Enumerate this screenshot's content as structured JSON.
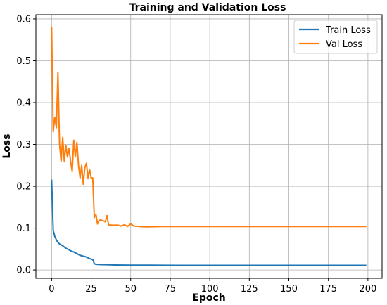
{
  "chart_data": {
    "type": "line",
    "title": "Training and Validation Loss",
    "xlabel": "Epoch",
    "ylabel": "Loss",
    "xlim": [
      -9.95,
      208.95
    ],
    "ylim": [
      -0.02,
      0.61
    ],
    "xticks": [
      0,
      25,
      50,
      75,
      100,
      125,
      150,
      175,
      200
    ],
    "yticks": [
      0.0,
      0.1,
      0.2,
      0.3,
      0.4,
      0.5,
      0.6
    ],
    "ytick_labels": [
      "0.0",
      "0.1",
      "0.2",
      "0.3",
      "0.4",
      "0.5",
      "0.6"
    ],
    "grid": true,
    "legend_position": "upper right",
    "series": [
      {
        "name": "Train Loss",
        "color": "#1f77b4",
        "points": [
          [
            0,
            0.216
          ],
          [
            1,
            0.095
          ],
          [
            2,
            0.08
          ],
          [
            3,
            0.072
          ],
          [
            4,
            0.066
          ],
          [
            5,
            0.062
          ],
          [
            6,
            0.06
          ],
          [
            7,
            0.058
          ],
          [
            8,
            0.055
          ],
          [
            9,
            0.052
          ],
          [
            10,
            0.05
          ],
          [
            11,
            0.048
          ],
          [
            12,
            0.046
          ],
          [
            13,
            0.044
          ],
          [
            14,
            0.043
          ],
          [
            15,
            0.041
          ],
          [
            16,
            0.039
          ],
          [
            17,
            0.037
          ],
          [
            18,
            0.035
          ],
          [
            19,
            0.034
          ],
          [
            20,
            0.033
          ],
          [
            21,
            0.032
          ],
          [
            22,
            0.031
          ],
          [
            23,
            0.029
          ],
          [
            24,
            0.027
          ],
          [
            25,
            0.026
          ],
          [
            26,
            0.025
          ],
          [
            27,
            0.015
          ],
          [
            28,
            0.0135
          ],
          [
            30,
            0.013
          ],
          [
            35,
            0.0125
          ],
          [
            40,
            0.012
          ],
          [
            50,
            0.0115
          ],
          [
            60,
            0.0115
          ],
          [
            80,
            0.011
          ],
          [
            100,
            0.011
          ],
          [
            150,
            0.011
          ],
          [
            199,
            0.011
          ]
        ]
      },
      {
        "name": "Val Loss",
        "color": "#ff7f0e",
        "points": [
          [
            0,
            0.58
          ],
          [
            1,
            0.33
          ],
          [
            2,
            0.365
          ],
          [
            3,
            0.34
          ],
          [
            4,
            0.472
          ],
          [
            5,
            0.3
          ],
          [
            6,
            0.26
          ],
          [
            7,
            0.317
          ],
          [
            8,
            0.26
          ],
          [
            9,
            0.298
          ],
          [
            10,
            0.27
          ],
          [
            11,
            0.29
          ],
          [
            12,
            0.26
          ],
          [
            13,
            0.235
          ],
          [
            14,
            0.31
          ],
          [
            15,
            0.27
          ],
          [
            16,
            0.305
          ],
          [
            17,
            0.25
          ],
          [
            18,
            0.22
          ],
          [
            19,
            0.25
          ],
          [
            20,
            0.205
          ],
          [
            21,
            0.245
          ],
          [
            22,
            0.255
          ],
          [
            23,
            0.22
          ],
          [
            24,
            0.24
          ],
          [
            25,
            0.22
          ],
          [
            26,
            0.22
          ],
          [
            27,
            0.125
          ],
          [
            28,
            0.133
          ],
          [
            29,
            0.11
          ],
          [
            30,
            0.118
          ],
          [
            31,
            0.12
          ],
          [
            32,
            0.118
          ],
          [
            33,
            0.117
          ],
          [
            34,
            0.115
          ],
          [
            35,
            0.13
          ],
          [
            36,
            0.108
          ],
          [
            38,
            0.107
          ],
          [
            40,
            0.107
          ],
          [
            42,
            0.107
          ],
          [
            44,
            0.105
          ],
          [
            46,
            0.108
          ],
          [
            48,
            0.104
          ],
          [
            50,
            0.11
          ],
          [
            52,
            0.105
          ],
          [
            55,
            0.104
          ],
          [
            60,
            0.103
          ],
          [
            70,
            0.104
          ],
          [
            100,
            0.104
          ],
          [
            150,
            0.104
          ],
          [
            199,
            0.104
          ]
        ]
      }
    ]
  }
}
